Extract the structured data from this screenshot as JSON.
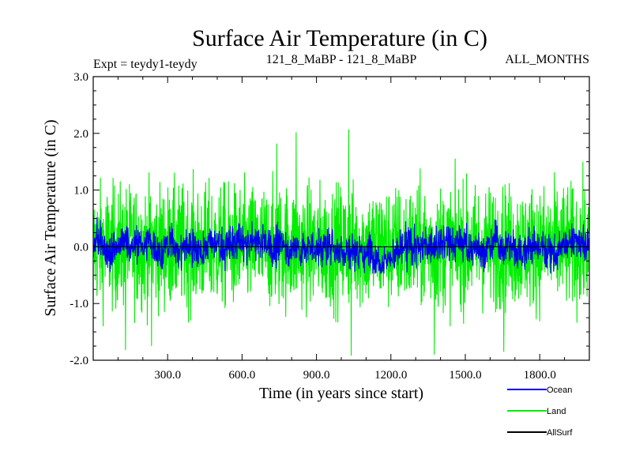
{
  "chart_data": {
    "type": "line",
    "title": "Surface Air Temperature (in C)",
    "subtitle_left": "Expt = teydy1-teydy",
    "subtitle_center": "121_8_MaBP - 121_8_MaBP",
    "subtitle_right": "ALL_MONTHS",
    "xlabel": "Time (in years since start)",
    "ylabel": "Surface Air Temperature (in C)",
    "xlim": [
      0,
      2000
    ],
    "ylim": [
      -2.0,
      3.0
    ],
    "x_ticks": [
      300,
      600,
      900,
      1200,
      1500,
      1800
    ],
    "x_tick_labels": [
      "300.0",
      "600.0",
      "900.0",
      "1200.0",
      "1500.0",
      "1800.0"
    ],
    "y_ticks": [
      -2.0,
      -1.0,
      0.0,
      1.0,
      2.0,
      3.0
    ],
    "y_tick_labels": [
      "-2.0",
      "-1.0",
      "0.0",
      "1.0",
      "2.0",
      "3.0"
    ],
    "zero_line": 0.0,
    "legend_placement": "bottom-right",
    "series": [
      {
        "name": "Land",
        "color": "#00ee00",
        "typical_range": [
          -1.2,
          1.2
        ],
        "extremes": [
          {
            "x": 818,
            "y": 2.02
          },
          {
            "x": 1030,
            "y": 2.07
          },
          {
            "x": 740,
            "y": 1.82
          },
          {
            "x": 1040,
            "y": -1.92
          },
          {
            "x": 1375,
            "y": -1.9
          },
          {
            "x": 130,
            "y": -1.82
          },
          {
            "x": 1655,
            "y": -1.85
          },
          {
            "x": 235,
            "y": -1.75
          }
        ]
      },
      {
        "name": "Ocean",
        "color": "#0000ee",
        "typical_range": [
          -0.45,
          0.45
        ],
        "extremes": [
          {
            "x": 15,
            "y": 0.52
          },
          {
            "x": 1260,
            "y": 0.45
          },
          {
            "x": 1505,
            "y": 0.42
          },
          {
            "x": 355,
            "y": -0.42
          },
          {
            "x": 1265,
            "y": -0.45
          }
        ]
      },
      {
        "name": "AllSurf",
        "color": "#000000",
        "typical_range": [
          0.0,
          0.0
        ],
        "extremes": []
      }
    ]
  }
}
